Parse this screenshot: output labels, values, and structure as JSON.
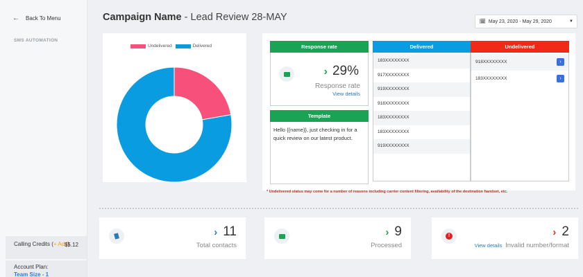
{
  "sidebar": {
    "back_label": "Back To Menu",
    "section": "SMS AUTOMATION",
    "credits_label": "Calling Credits (",
    "credits_add": "+ Add",
    "credits_close": ")",
    "credits_amount": "$5.12",
    "plan_label": "Account Plan:",
    "plan_value": "Team Size - 1"
  },
  "header": {
    "title_bold": "Campaign Name",
    "title_rest": " - Lead Review 28-MAY",
    "date_range": "May 23, 2020 - May 29, 2020"
  },
  "chart_data": {
    "type": "pie",
    "subtype": "donut",
    "legend_position": "top",
    "labels": [
      "Undelivered",
      "Delivered"
    ],
    "values": [
      2,
      7
    ],
    "colors": [
      "#f7507a",
      "#0a9ce0"
    ]
  },
  "response": {
    "header": "Response rate",
    "value": "29%",
    "label": "Response rate",
    "link": "View details"
  },
  "template": {
    "header": "Template",
    "text": "Hello {{name}}, just checking in for a quick review on our latest product."
  },
  "delivered": {
    "header": "Delivered",
    "rows": [
      "183XXXXXXXX",
      "917XXXXXXXX",
      "919XXXXXXXX",
      "918XXXXXXXX",
      "183XXXXXXXX",
      "183XXXXXXXX",
      "919XXXXXXXX"
    ]
  },
  "undelivered": {
    "header": "Undelivered",
    "rows": [
      "918XXXXXXXX",
      "183XXXXXXXX"
    ]
  },
  "footnote": "* Undelivered status may come for a number of reasons including carrier content filtering, availability of the destination handset, etc.",
  "stats": {
    "total": {
      "value": "11",
      "label": "Total contacts"
    },
    "processed": {
      "value": "9",
      "label": "Processed"
    },
    "invalid": {
      "value": "2",
      "label": "Invalid number/format",
      "link": "View details"
    }
  },
  "colors": {
    "green": "#1aa355",
    "blue": "#0a9ce0",
    "red": "#f02a17",
    "pink": "#f7507a"
  },
  "icons": {
    "back": "arrow-left-icon",
    "calendar": "calendar-icon",
    "response": "envelope-icon",
    "total": "contacts-icon",
    "processed": "envelope-icon",
    "invalid": "alert-icon"
  }
}
